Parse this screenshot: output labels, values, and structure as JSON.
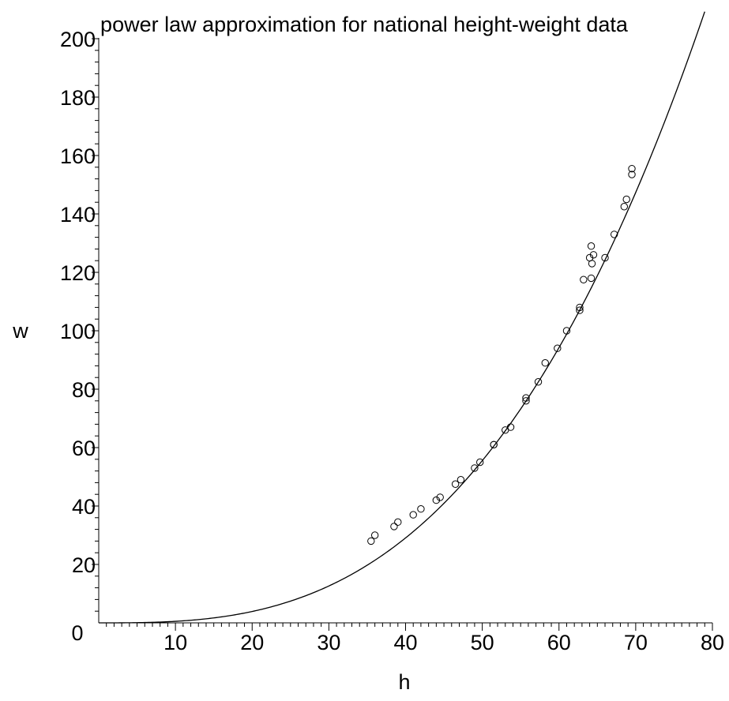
{
  "chart_data": {
    "type": "scatter",
    "title": "power law approximation for national height-weight data",
    "xlabel": "h",
    "ylabel": "w",
    "xlim": [
      0,
      80
    ],
    "ylim": [
      0,
      200
    ],
    "x_ticks": [
      10,
      20,
      30,
      40,
      50,
      60,
      70,
      80
    ],
    "y_ticks": [
      20,
      40,
      60,
      80,
      100,
      120,
      140,
      160,
      180,
      200
    ],
    "origin_label": "0",
    "grid": false,
    "series": [
      {
        "kind": "scatter",
        "marker": "open-circle",
        "points": [
          [
            35.5,
            28
          ],
          [
            36,
            30
          ],
          [
            38.5,
            33
          ],
          [
            39,
            34.5
          ],
          [
            41,
            37
          ],
          [
            42,
            39
          ],
          [
            44,
            42
          ],
          [
            44.5,
            43
          ],
          [
            46.5,
            47.5
          ],
          [
            47.2,
            49
          ],
          [
            49,
            53
          ],
          [
            49.7,
            55
          ],
          [
            51.5,
            61
          ],
          [
            51.5,
            61
          ],
          [
            53,
            66
          ],
          [
            53.7,
            67
          ],
          [
            55.7,
            76
          ],
          [
            55.7,
            77
          ],
          [
            57.3,
            82.5
          ],
          [
            58.2,
            89
          ],
          [
            59.8,
            94
          ],
          [
            61,
            100
          ],
          [
            62.7,
            107
          ],
          [
            62.7,
            108
          ],
          [
            63.2,
            117.5
          ],
          [
            64.2,
            118
          ],
          [
            64,
            125
          ],
          [
            64.3,
            123
          ],
          [
            64.5,
            126
          ],
          [
            64.2,
            129
          ],
          [
            66,
            125
          ],
          [
            67.2,
            133
          ],
          [
            68.5,
            142.5
          ],
          [
            68.8,
            145
          ],
          [
            69.5,
            153.5
          ],
          [
            69.5,
            155.5
          ]
        ]
      },
      {
        "kind": "curve",
        "coefficient": 0.000657,
        "exponent": 2.9,
        "x_range": [
          0,
          79
        ]
      }
    ]
  }
}
